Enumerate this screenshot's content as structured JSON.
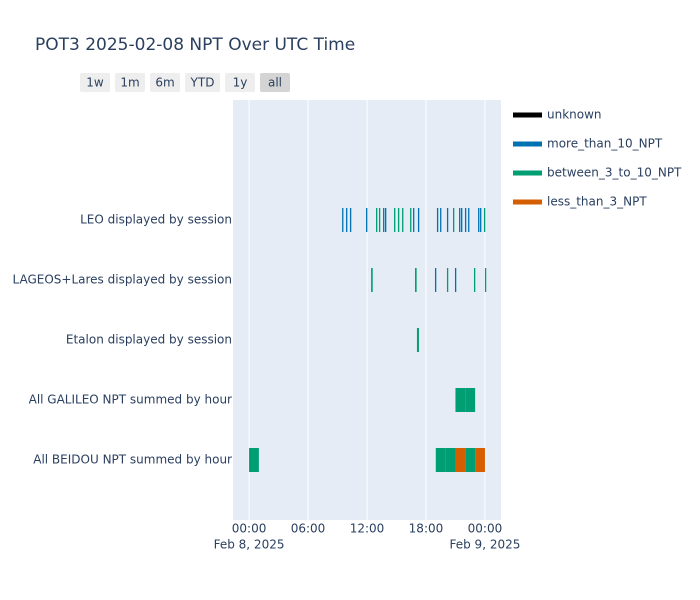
{
  "chart_data": {
    "type": "timeline",
    "title": "POT3 2025-02-08 NPT Over UTC Time",
    "range_buttons": [
      {
        "label": "1w",
        "active": false
      },
      {
        "label": "1m",
        "active": false
      },
      {
        "label": "6m",
        "active": false
      },
      {
        "label": "YTD",
        "active": false
      },
      {
        "label": "1y",
        "active": false
      },
      {
        "label": "all",
        "active": true
      }
    ],
    "categories": [
      "LEO displayed by session",
      "LAGEOS+Lares displayed by session",
      "Etalon displayed by session",
      "All GALILEO NPT summed by hour",
      "All BEIDOU NPT summed by hour"
    ],
    "xlim": [
      "2025-02-07 22:22",
      "2025-02-09 01:38"
    ],
    "xticks": [
      {
        "value": "2025-02-08 00:00",
        "label": "00:00"
      },
      {
        "value": "2025-02-08 06:00",
        "label": "06:00"
      },
      {
        "value": "2025-02-08 12:00",
        "label": "12:00"
      },
      {
        "value": "2025-02-08 18:00",
        "label": "18:00"
      },
      {
        "value": "2025-02-09 00:00",
        "label": "00:00"
      }
    ],
    "xtick_dates": [
      "Feb 8, 2025",
      null,
      null,
      null,
      "Feb 9, 2025"
    ],
    "plot_background": "#e5ecf6",
    "series": [
      {
        "name": "unknown",
        "color": "#000000",
        "segments": []
      },
      {
        "name": "more_than_10_NPT",
        "color": "#0072b2",
        "segments": [
          {
            "y": 0,
            "start": "2025-02-08 09:28",
            "end": "2025-02-08 09:36"
          },
          {
            "y": 0,
            "start": "2025-02-08 09:52",
            "end": "2025-02-08 10:00"
          },
          {
            "y": 0,
            "start": "2025-02-08 10:16",
            "end": "2025-02-08 10:24"
          },
          {
            "y": 0,
            "start": "2025-02-08 11:54",
            "end": "2025-02-08 12:02"
          },
          {
            "y": 0,
            "start": "2025-02-08 13:38",
            "end": "2025-02-08 13:46"
          },
          {
            "y": 0,
            "start": "2025-02-08 13:50",
            "end": "2025-02-08 13:58"
          },
          {
            "y": 0,
            "start": "2025-02-08 16:41",
            "end": "2025-02-08 16:49"
          },
          {
            "y": 0,
            "start": "2025-02-08 17:11",
            "end": "2025-02-08 17:19"
          },
          {
            "y": 0,
            "start": "2025-02-08 19:07",
            "end": "2025-02-08 19:15"
          },
          {
            "y": 0,
            "start": "2025-02-08 19:26",
            "end": "2025-02-08 19:34"
          },
          {
            "y": 0,
            "start": "2025-02-08 20:08",
            "end": "2025-02-08 20:16"
          },
          {
            "y": 0,
            "start": "2025-02-08 21:22",
            "end": "2025-02-08 21:30"
          },
          {
            "y": 0,
            "start": "2025-02-08 21:34",
            "end": "2025-02-08 21:42"
          },
          {
            "y": 0,
            "start": "2025-02-08 21:58",
            "end": "2025-02-08 22:06"
          },
          {
            "y": 0,
            "start": "2025-02-08 22:17",
            "end": "2025-02-08 22:25"
          },
          {
            "y": 0,
            "start": "2025-02-08 23:18",
            "end": "2025-02-08 23:26"
          },
          {
            "y": 0,
            "start": "2025-02-08 23:30",
            "end": "2025-02-08 23:38"
          },
          {
            "y": 1,
            "start": "2025-02-08 18:55",
            "end": "2025-02-08 19:03"
          },
          {
            "y": 1,
            "start": "2025-02-08 20:57",
            "end": "2025-02-08 21:05"
          }
        ]
      },
      {
        "name": "between_3_to_10_NPT",
        "color": "#009e73",
        "segments": [
          {
            "y": 0,
            "start": "2025-02-08 12:55",
            "end": "2025-02-08 13:03"
          },
          {
            "y": 0,
            "start": "2025-02-08 13:13",
            "end": "2025-02-08 13:21"
          },
          {
            "y": 0,
            "start": "2025-02-08 14:45",
            "end": "2025-02-08 14:53"
          },
          {
            "y": 0,
            "start": "2025-02-08 15:09",
            "end": "2025-02-08 15:17"
          },
          {
            "y": 0,
            "start": "2025-02-08 15:34",
            "end": "2025-02-08 15:42"
          },
          {
            "y": 0,
            "start": "2025-02-08 16:23",
            "end": "2025-02-08 16:31"
          },
          {
            "y": 0,
            "start": "2025-02-08 20:45",
            "end": "2025-02-08 20:53"
          },
          {
            "y": 0,
            "start": "2025-02-08 23:54",
            "end": "2025-02-09 00:02"
          },
          {
            "y": 1,
            "start": "2025-02-08 12:25",
            "end": "2025-02-08 12:35"
          },
          {
            "y": 1,
            "start": "2025-02-08 16:53",
            "end": "2025-02-08 17:03"
          },
          {
            "y": 1,
            "start": "2025-02-08 20:08",
            "end": "2025-02-08 20:16"
          },
          {
            "y": 1,
            "start": "2025-02-08 22:53",
            "end": "2025-02-08 23:01"
          },
          {
            "y": 1,
            "start": "2025-02-09 00:00",
            "end": "2025-02-09 00:08"
          },
          {
            "y": 2,
            "start": "2025-02-08 17:05",
            "end": "2025-02-08 17:17"
          },
          {
            "y": 3,
            "start": "2025-02-08 21:00",
            "end": "2025-02-08 22:00"
          },
          {
            "y": 3,
            "start": "2025-02-08 22:00",
            "end": "2025-02-08 23:00"
          },
          {
            "y": 4,
            "start": "2025-02-08 00:00",
            "end": "2025-02-08 01:00"
          },
          {
            "y": 4,
            "start": "2025-02-08 19:00",
            "end": "2025-02-08 20:00"
          },
          {
            "y": 4,
            "start": "2025-02-08 20:00",
            "end": "2025-02-08 21:00"
          },
          {
            "y": 4,
            "start": "2025-02-08 22:00",
            "end": "2025-02-08 23:00"
          }
        ]
      },
      {
        "name": "less_than_3_NPT",
        "color": "#d55e00",
        "segments": [
          {
            "y": 4,
            "start": "2025-02-08 21:00",
            "end": "2025-02-08 22:00"
          },
          {
            "y": 4,
            "start": "2025-02-08 23:00",
            "end": "2025-02-09 00:00"
          }
        ]
      }
    ]
  }
}
